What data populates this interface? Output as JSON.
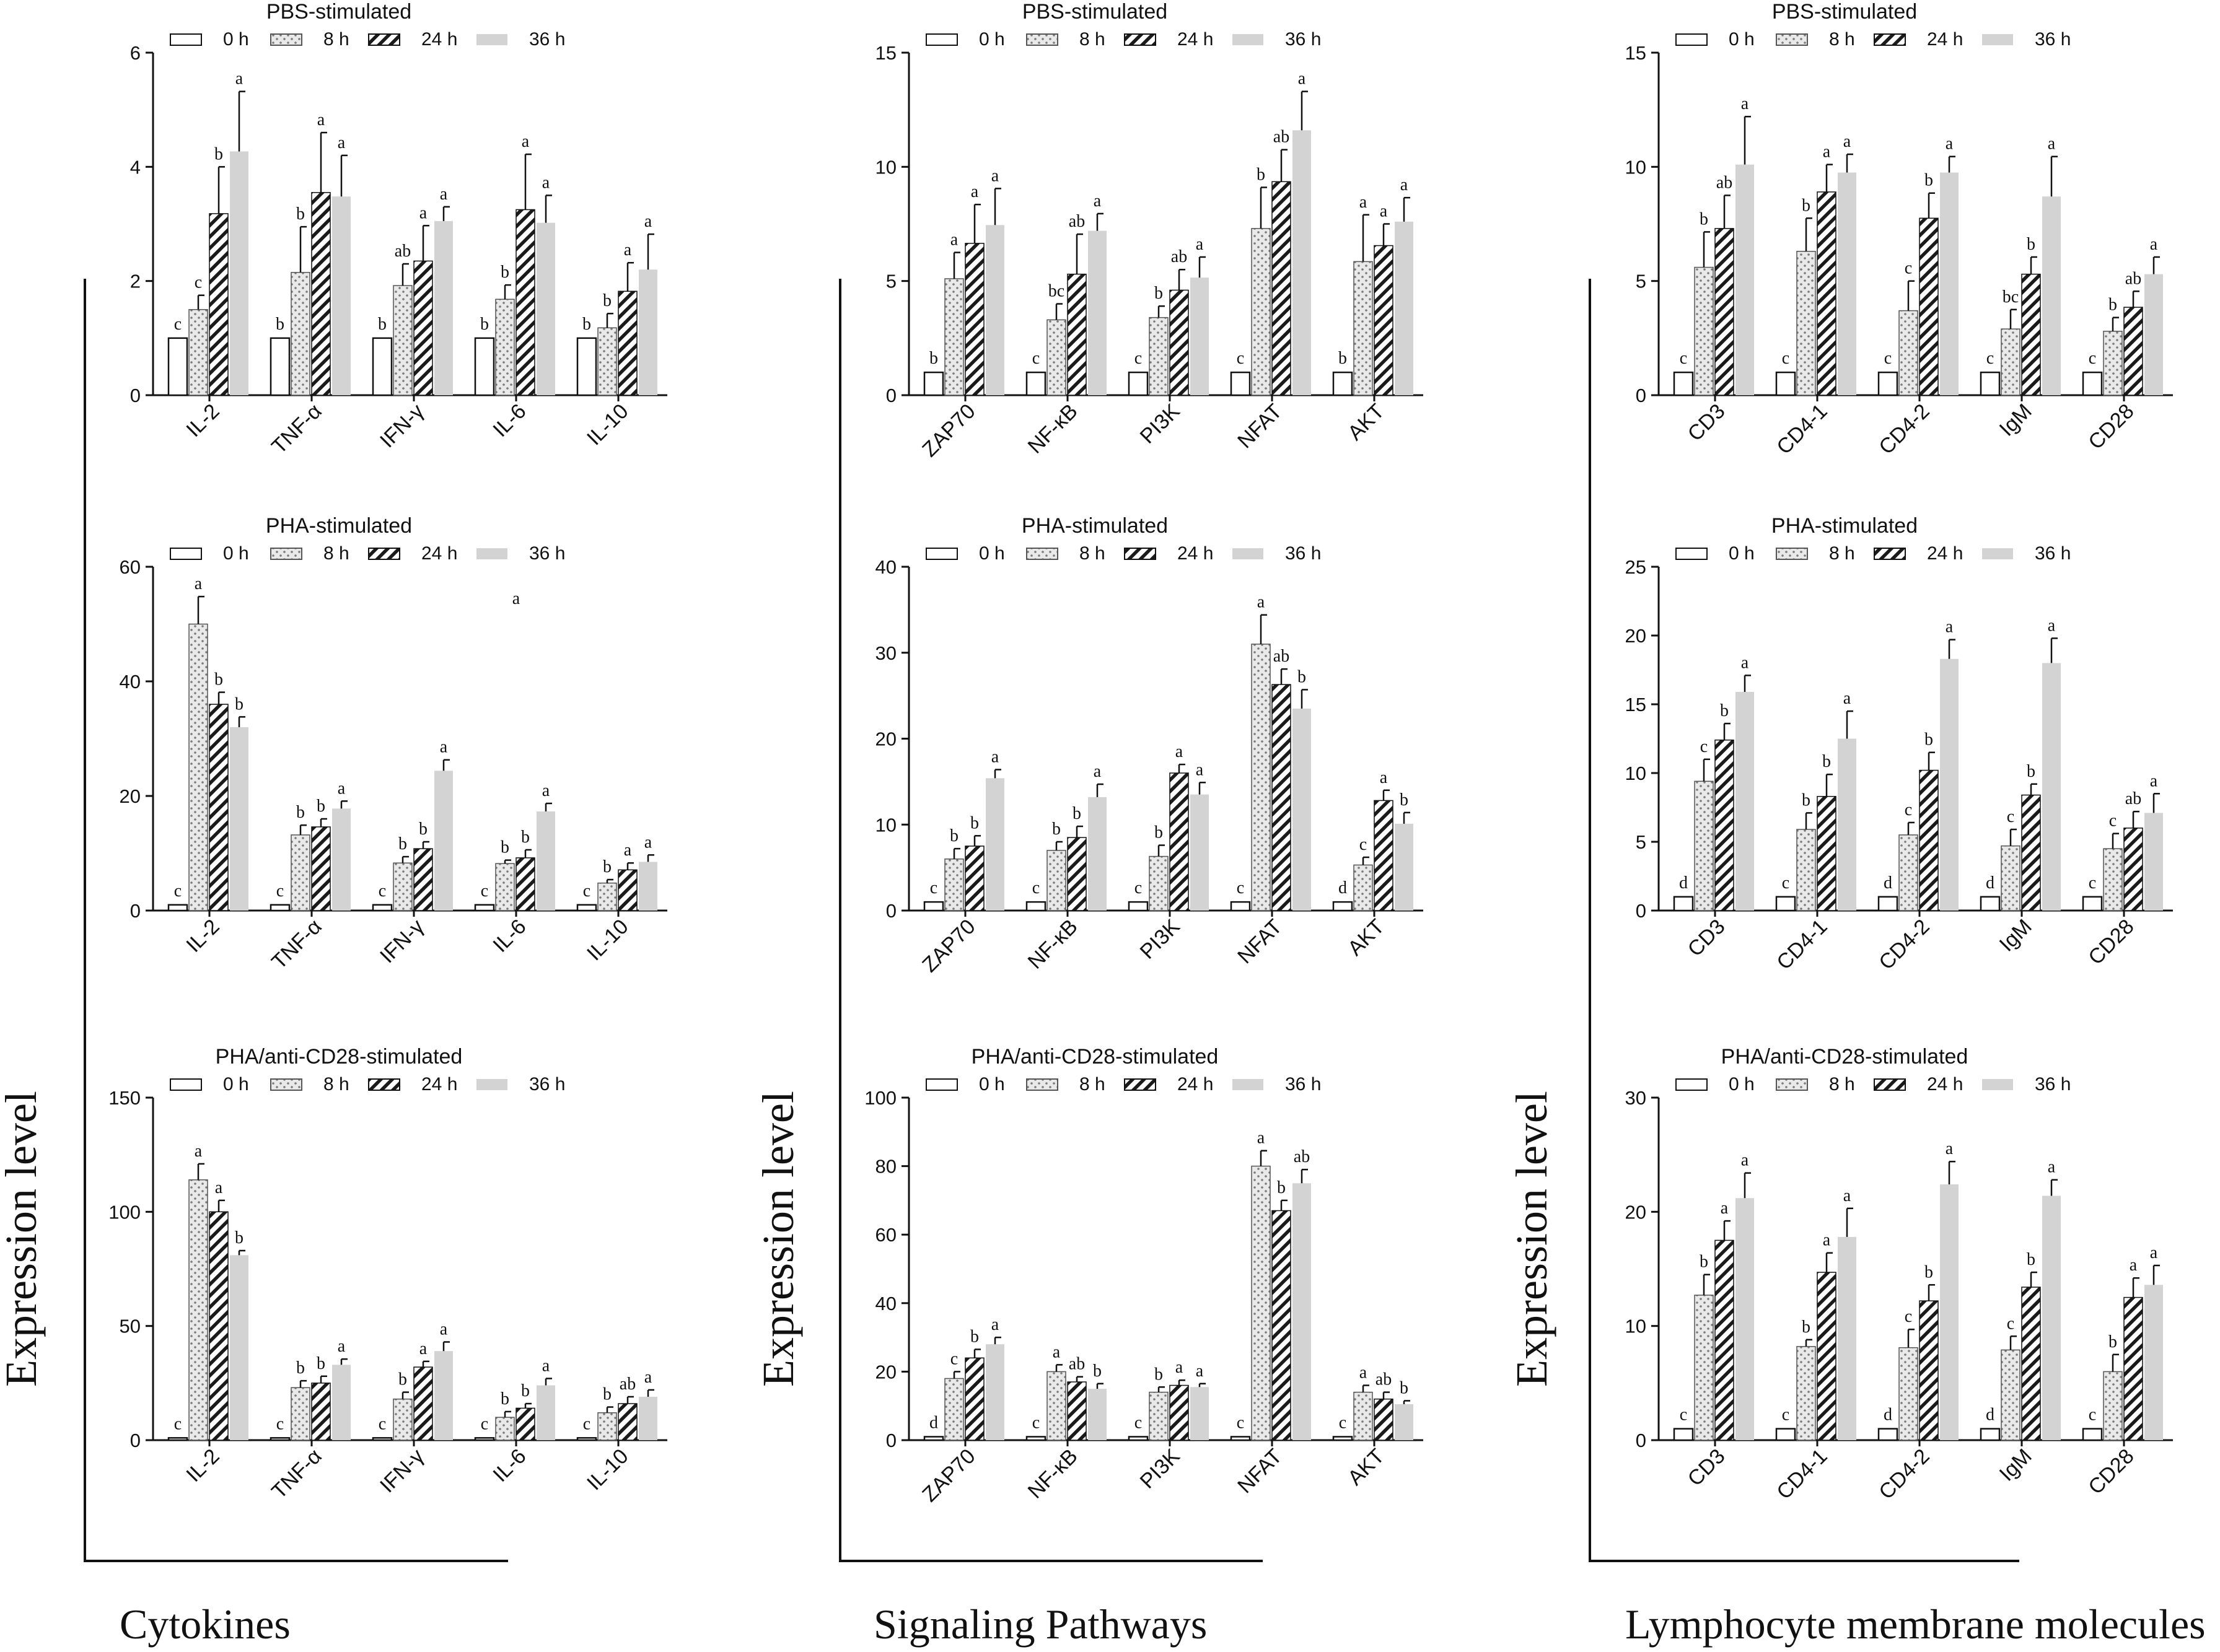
{
  "figure": {
    "series_names": [
      "0 h",
      "8 h",
      "24 h",
      "36 h"
    ],
    "y_label": "Expression level",
    "colors": {
      "axis": "#111111",
      "bar_36h": "#d3d3d3",
      "bar_8h_fill": "#e8e8e8",
      "bar_0h_fill": "#ffffff"
    }
  },
  "groups": [
    {
      "label": "Cytokines",
      "y_label": "Expression level"
    },
    {
      "label": "Signaling Pathways",
      "y_label": "Expression level"
    },
    {
      "label": "Lymphocyte membrane molecules",
      "y_label": "Expression level"
    }
  ],
  "chart_data": [
    {
      "type": "bar",
      "title": "PBS-stimulated",
      "group": "Cytokines",
      "categories": [
        "IL-2",
        "TNF-α",
        "IFN-γ",
        "IL-6",
        "IL-10"
      ],
      "ylim": [
        0,
        6
      ],
      "yticks": [
        0,
        2,
        4,
        6
      ],
      "series": [
        {
          "name": "0 h",
          "values": [
            1,
            1,
            1,
            1,
            1
          ],
          "errors": [
            0,
            0,
            0,
            0,
            0
          ],
          "letters": [
            "c",
            "b",
            "b",
            "b",
            "b"
          ]
        },
        {
          "name": "8 h",
          "values": [
            1.5,
            2.15,
            1.92,
            1.68,
            1.18
          ],
          "errors": [
            0.25,
            0.8,
            0.38,
            0.25,
            0.25
          ],
          "letters": [
            "c",
            "b",
            "ab",
            "b",
            "b"
          ]
        },
        {
          "name": "24 h",
          "values": [
            3.18,
            3.55,
            2.35,
            3.25,
            1.82
          ],
          "errors": [
            0.82,
            1.05,
            0.62,
            0.97,
            0.5
          ],
          "letters": [
            "b",
            "a",
            "a",
            "a",
            "a"
          ]
        },
        {
          "name": "36 h",
          "values": [
            4.27,
            3.48,
            3.05,
            3.02,
            2.2
          ],
          "errors": [
            1.05,
            0.72,
            0.25,
            0.48,
            0.62
          ],
          "letters": [
            "a",
            "a",
            "a",
            "a",
            "a"
          ]
        }
      ]
    },
    {
      "type": "bar",
      "title": "PBS-stimulated",
      "group": "Signaling Pathways",
      "categories": [
        "ZAP70",
        "NF-κB",
        "PI3K",
        "NFAT",
        "AKT"
      ],
      "ylim": [
        0,
        15
      ],
      "yticks": [
        0,
        5,
        10,
        15
      ],
      "series": [
        {
          "name": "0 h",
          "values": [
            1,
            1,
            1,
            1,
            1
          ],
          "errors": [
            0,
            0,
            0,
            0,
            0
          ],
          "letters": [
            "b",
            "c",
            "c",
            "c",
            "b"
          ]
        },
        {
          "name": "8 h",
          "values": [
            5.1,
            3.3,
            3.4,
            7.3,
            5.85
          ],
          "errors": [
            1.15,
            0.7,
            0.5,
            1.8,
            2.05
          ],
          "letters": [
            "a",
            "bc",
            "b",
            "b",
            "a"
          ]
        },
        {
          "name": "24 h",
          "values": [
            6.65,
            5.3,
            4.6,
            9.35,
            6.55
          ],
          "errors": [
            1.7,
            1.75,
            0.9,
            1.4,
            0.95
          ],
          "letters": [
            "a",
            "ab",
            "ab",
            "ab",
            "a"
          ]
        },
        {
          "name": "36 h",
          "values": [
            7.45,
            7.2,
            5.15,
            11.6,
            7.6
          ],
          "errors": [
            1.6,
            0.75,
            0.9,
            1.7,
            1.05
          ],
          "letters": [
            "a",
            "a",
            "a",
            "a",
            "a"
          ]
        }
      ]
    },
    {
      "type": "bar",
      "title": "PBS-stimulated",
      "group": "Lymphocyte membrane molecules",
      "categories": [
        "CD3",
        "CD4-1",
        "CD4-2",
        "IgM",
        "CD28"
      ],
      "ylim": [
        0,
        15
      ],
      "yticks": [
        0,
        5,
        10,
        15
      ],
      "series": [
        {
          "name": "0 h",
          "values": [
            1,
            1,
            1,
            1,
            1
          ],
          "errors": [
            0,
            0,
            0,
            0,
            0
          ],
          "letters": [
            "c",
            "c",
            "c",
            "c",
            "c"
          ]
        },
        {
          "name": "8 h",
          "values": [
            5.6,
            6.3,
            3.7,
            2.9,
            2.8
          ],
          "errors": [
            1.55,
            1.45,
            1.3,
            0.85,
            0.6
          ],
          "letters": [
            "b",
            "b",
            "c",
            "bc",
            "b"
          ]
        },
        {
          "name": "24 h",
          "values": [
            7.3,
            8.9,
            7.75,
            5.3,
            3.85
          ],
          "errors": [
            1.45,
            1.2,
            1.1,
            0.75,
            0.7
          ],
          "letters": [
            "ab",
            "a",
            "b",
            "b",
            "ab"
          ]
        },
        {
          "name": "36 h",
          "values": [
            10.1,
            9.75,
            9.75,
            8.7,
            5.3
          ],
          "errors": [
            2.1,
            0.8,
            0.7,
            1.75,
            0.75
          ],
          "letters": [
            "a",
            "a",
            "a",
            "a",
            "a"
          ]
        }
      ]
    },
    {
      "type": "bar",
      "title": "PHA-stimulated",
      "group": "Cytokines",
      "categories": [
        "IL-2",
        "TNF-α",
        "IFN-γ",
        "IL-6",
        "IL-10"
      ],
      "ylim": [
        0,
        60
      ],
      "yticks": [
        0,
        20,
        40,
        60
      ],
      "extra_letter": {
        "text": "a",
        "category_index": 3,
        "value": 53.5
      },
      "series": [
        {
          "name": "0 h",
          "values": [
            1,
            1,
            1,
            1,
            1
          ],
          "errors": [
            0,
            0,
            0,
            0,
            0
          ],
          "letters": [
            "c",
            "c",
            "c",
            "c",
            "c"
          ]
        },
        {
          "name": "8 h",
          "values": [
            50,
            13.2,
            8.3,
            8.2,
            4.8
          ],
          "errors": [
            4.8,
            1.7,
            1.1,
            0.6,
            0.6
          ],
          "letters": [
            "a",
            "b",
            "b",
            "b",
            "b"
          ]
        },
        {
          "name": "24 h",
          "values": [
            36,
            14.6,
            10.8,
            9.2,
            7.1
          ],
          "errors": [
            2.1,
            1.4,
            1.2,
            1.4,
            1.2
          ],
          "letters": [
            "b",
            "b",
            "b",
            "b",
            "a"
          ]
        },
        {
          "name": "36 h",
          "values": [
            32,
            17.8,
            24.4,
            17.3,
            8.5
          ],
          "errors": [
            1.8,
            1.3,
            1.9,
            1.4,
            1.2
          ],
          "letters": [
            "b",
            "a",
            "a",
            "a",
            "a"
          ]
        }
      ]
    },
    {
      "type": "bar",
      "title": "PHA-stimulated",
      "group": "Signaling Pathways",
      "categories": [
        "ZAP70",
        "NF-κB",
        "PI3K",
        "NFAT",
        "AKT"
      ],
      "ylim": [
        0,
        40
      ],
      "yticks": [
        0,
        10,
        20,
        30,
        40
      ],
      "series": [
        {
          "name": "0 h",
          "values": [
            1,
            1,
            1,
            1,
            1
          ],
          "errors": [
            0,
            0,
            0,
            0,
            0
          ],
          "letters": [
            "c",
            "c",
            "c",
            "c",
            "d"
          ]
        },
        {
          "name": "8 h",
          "values": [
            6,
            7,
            6.3,
            31,
            5.3
          ],
          "errors": [
            1.2,
            1,
            1.3,
            3.4,
            0.9
          ],
          "letters": [
            "b",
            "b",
            "b",
            "a",
            "c"
          ]
        },
        {
          "name": "24 h",
          "values": [
            7.5,
            8.5,
            16,
            26.3,
            12.8
          ],
          "errors": [
            1.2,
            1.3,
            1,
            1.8,
            1.2
          ],
          "letters": [
            "b",
            "b",
            "a",
            "ab",
            "a"
          ]
        },
        {
          "name": "36 h",
          "values": [
            15.4,
            13.2,
            13.5,
            23.5,
            10.1
          ],
          "errors": [
            1,
            1.5,
            1.4,
            2.2,
            1.3
          ],
          "letters": [
            "a",
            "a",
            "a",
            "b",
            "b"
          ]
        }
      ]
    },
    {
      "type": "bar",
      "title": "PHA-stimulated",
      "group": "Lymphocyte membrane molecules",
      "categories": [
        "CD3",
        "CD4-1",
        "CD4-2",
        "IgM",
        "CD28"
      ],
      "ylim": [
        0,
        25
      ],
      "yticks": [
        0,
        5,
        10,
        15,
        20,
        25
      ],
      "series": [
        {
          "name": "0 h",
          "values": [
            1,
            1,
            1,
            1,
            1
          ],
          "errors": [
            0,
            0,
            0,
            0,
            0
          ],
          "letters": [
            "d",
            "c",
            "d",
            "d",
            "c"
          ]
        },
        {
          "name": "8 h",
          "values": [
            9.4,
            5.9,
            5.5,
            4.7,
            4.5
          ],
          "errors": [
            1.6,
            1.2,
            0.9,
            1.2,
            1.1
          ],
          "letters": [
            "c",
            "b",
            "c",
            "c",
            "c"
          ]
        },
        {
          "name": "24 h",
          "values": [
            12.4,
            8.3,
            10.2,
            8.4,
            6
          ],
          "errors": [
            1.2,
            1.6,
            1.3,
            0.8,
            1.2
          ],
          "letters": [
            "b",
            "b",
            "b",
            "b",
            "ab"
          ]
        },
        {
          "name": "36 h",
          "values": [
            15.9,
            12.5,
            18.3,
            18,
            7.1
          ],
          "errors": [
            1.2,
            2,
            1.4,
            1.8,
            1.4
          ],
          "letters": [
            "a",
            "a",
            "a",
            "a",
            "a"
          ]
        }
      ]
    },
    {
      "type": "bar",
      "title": "PHA/anti-CD28-stimulated",
      "group": "Cytokines",
      "categories": [
        "IL-2",
        "TNF-α",
        "IFN-γ",
        "IL-6",
        "IL-10"
      ],
      "ylim": [
        0,
        150
      ],
      "yticks": [
        0,
        50,
        100,
        150
      ],
      "series": [
        {
          "name": "0 h",
          "values": [
            1,
            1,
            1,
            1,
            1
          ],
          "errors": [
            0,
            0,
            0,
            0,
            0
          ],
          "letters": [
            "c",
            "c",
            "c",
            "c",
            "c"
          ]
        },
        {
          "name": "8 h",
          "values": [
            114,
            23,
            18,
            10,
            12
          ],
          "errors": [
            7,
            3,
            3,
            2.5,
            2.5
          ],
          "letters": [
            "a",
            "b",
            "b",
            "b",
            "b"
          ]
        },
        {
          "name": "24 h",
          "values": [
            100,
            25,
            32,
            14,
            16
          ],
          "errors": [
            5,
            3,
            2.5,
            2,
            3
          ],
          "letters": [
            "a",
            "b",
            "a",
            "b",
            "ab"
          ]
        },
        {
          "name": "36 h",
          "values": [
            81,
            33,
            39,
            24,
            19
          ],
          "errors": [
            2,
            2.5,
            4,
            3,
            3
          ],
          "letters": [
            "b",
            "a",
            "a",
            "a",
            "a"
          ]
        }
      ]
    },
    {
      "type": "bar",
      "title": "PHA/anti-CD28-stimulated",
      "group": "Signaling Pathways",
      "categories": [
        "ZAP70",
        "NF-κB",
        "PI3K",
        "NFAT",
        "AKT"
      ],
      "ylim": [
        0,
        100
      ],
      "yticks": [
        0,
        20,
        40,
        60,
        80,
        100
      ],
      "series": [
        {
          "name": "0 h",
          "values": [
            1,
            1,
            1,
            1,
            1
          ],
          "errors": [
            0,
            0,
            0,
            0,
            0
          ],
          "letters": [
            "d",
            "c",
            "c",
            "c",
            "c"
          ]
        },
        {
          "name": "8 h",
          "values": [
            18,
            20,
            14,
            80,
            14
          ],
          "errors": [
            2,
            2,
            1.5,
            4.5,
            2
          ],
          "letters": [
            "c",
            "a",
            "b",
            "a",
            "a"
          ]
        },
        {
          "name": "24 h",
          "values": [
            24,
            17,
            16,
            67,
            12
          ],
          "errors": [
            2.5,
            1.5,
            1.5,
            3,
            2
          ],
          "letters": [
            "b",
            "ab",
            "a",
            "b",
            "ab"
          ]
        },
        {
          "name": "36 h",
          "values": [
            28,
            15,
            15.5,
            75,
            10.5
          ],
          "errors": [
            2,
            1.5,
            1,
            4,
            1
          ],
          "letters": [
            "a",
            "b",
            "a",
            "ab",
            "b"
          ]
        }
      ]
    },
    {
      "type": "bar",
      "title": "PHA/anti-CD28-stimulated",
      "group": "Lymphocyte membrane molecules",
      "categories": [
        "CD3",
        "CD4-1",
        "CD4-2",
        "IgM",
        "CD28"
      ],
      "ylim": [
        0,
        30
      ],
      "yticks": [
        0,
        10,
        20,
        30
      ],
      "series": [
        {
          "name": "0 h",
          "values": [
            1,
            1,
            1,
            1,
            1
          ],
          "errors": [
            0,
            0,
            0,
            0,
            0
          ],
          "letters": [
            "c",
            "c",
            "d",
            "d",
            "c"
          ]
        },
        {
          "name": "8 h",
          "values": [
            12.7,
            8.2,
            8.1,
            7.9,
            6
          ],
          "errors": [
            1.8,
            0.6,
            1.6,
            1.2,
            1.5
          ],
          "letters": [
            "b",
            "b",
            "c",
            "c",
            "b"
          ]
        },
        {
          "name": "24 h",
          "values": [
            17.5,
            14.7,
            12.2,
            13.4,
            12.5
          ],
          "errors": [
            1.7,
            1.7,
            1.4,
            1.3,
            1.7
          ],
          "letters": [
            "a",
            "a",
            "b",
            "b",
            "a"
          ]
        },
        {
          "name": "36 h",
          "values": [
            21.2,
            17.8,
            22.4,
            21.4,
            13.6
          ],
          "errors": [
            2.2,
            2.5,
            2,
            1.4,
            1.7
          ],
          "letters": [
            "a",
            "a",
            "a",
            "a",
            "a"
          ]
        }
      ]
    }
  ]
}
